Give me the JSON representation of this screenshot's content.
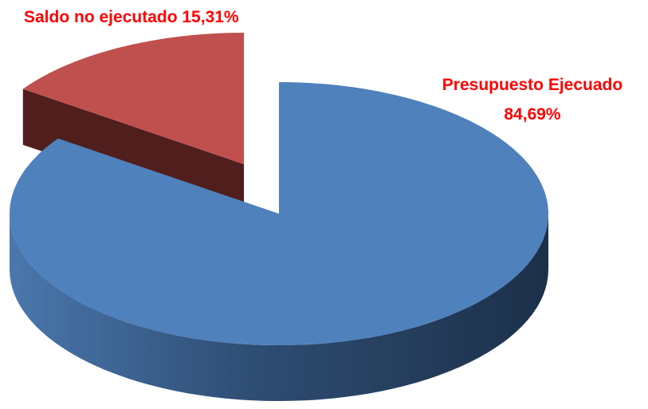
{
  "chart_data": {
    "type": "pie3d",
    "categories": [
      "Presupuesto Ejecuado",
      "Saldo no ejecutado"
    ],
    "values": [
      84.69,
      15.31
    ],
    "value_labels": [
      "84,69%",
      "15,31%"
    ],
    "colors": [
      "#4f81bd",
      "#c0504d"
    ]
  }
}
